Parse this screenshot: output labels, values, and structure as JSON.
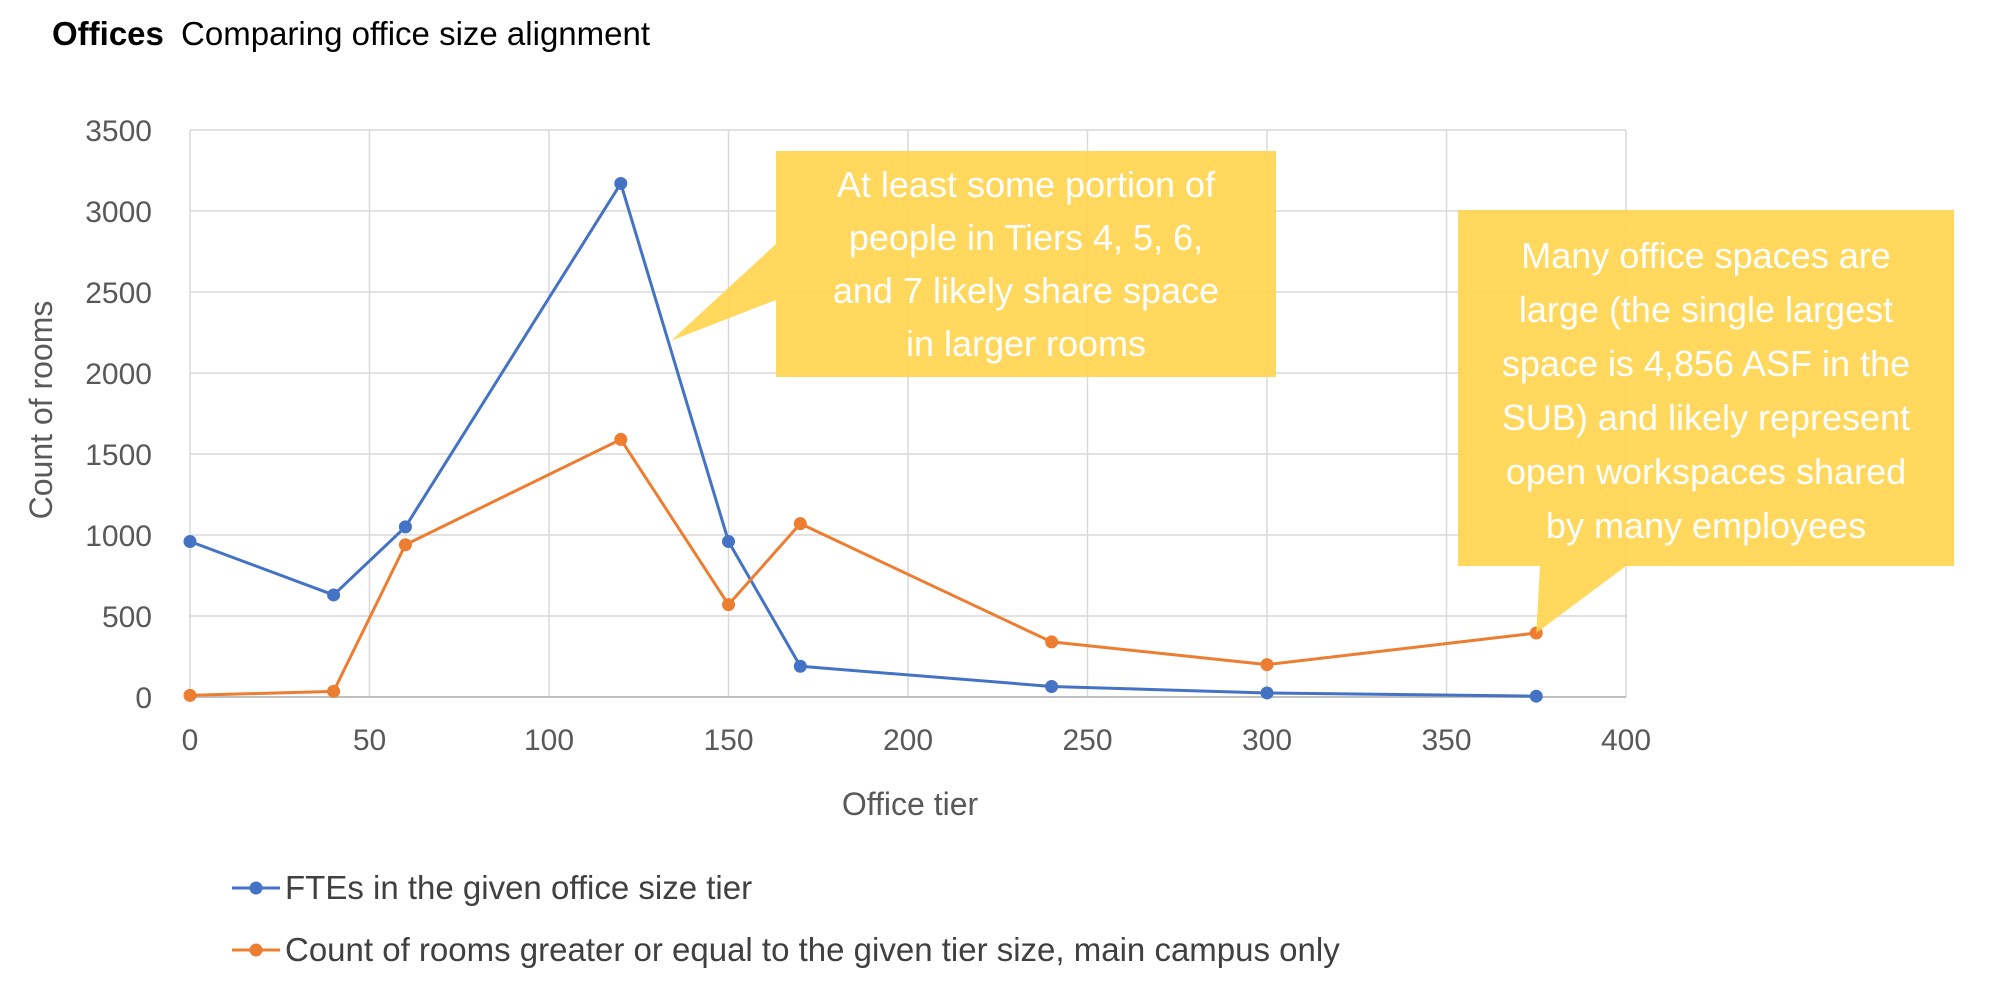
{
  "chart_data": {
    "type": "line",
    "title": "Offices",
    "subtitle": "Comparing office size alignment",
    "xlabel": "Office tier",
    "ylabel": "Count of rooms",
    "xlim": [
      0,
      400
    ],
    "ylim": [
      0,
      3500
    ],
    "x_ticks": [
      0,
      50,
      100,
      150,
      200,
      250,
      300,
      350,
      400
    ],
    "y_ticks": [
      0,
      500,
      1000,
      1500,
      2000,
      2500,
      3000,
      3500
    ],
    "grid": true,
    "legend_position": "bottom",
    "series": [
      {
        "name": "FTEs in the given office size tier",
        "color": "#4472c4",
        "x": [
          0,
          40,
          60,
          120,
          150,
          170,
          240,
          300,
          375
        ],
        "y": [
          960,
          630,
          1050,
          3170,
          960,
          190,
          65,
          25,
          5
        ]
      },
      {
        "name": "Count of rooms greater or equal to the given tier size, main campus only",
        "color": "#ed7d31",
        "x": [
          0,
          40,
          60,
          120,
          150,
          170,
          240,
          300,
          375
        ],
        "y": [
          10,
          35,
          940,
          1590,
          570,
          1070,
          340,
          200,
          395
        ]
      }
    ],
    "annotations": [
      {
        "lines": [
          "At least some portion of",
          "people in Tiers 4, 5, 6,",
          "and 7 likely share space",
          "in larger rooms"
        ],
        "points_to": [
          134,
          2200
        ],
        "fill": "#ffd54f"
      },
      {
        "lines": [
          "Many office spaces are",
          "large (the single largest",
          "space is 4,856 ASF in the",
          "SUB) and likely represent",
          "open workspaces shared",
          "by many employees"
        ],
        "points_to": [
          375,
          395
        ],
        "fill": "#ffd54f"
      }
    ]
  }
}
